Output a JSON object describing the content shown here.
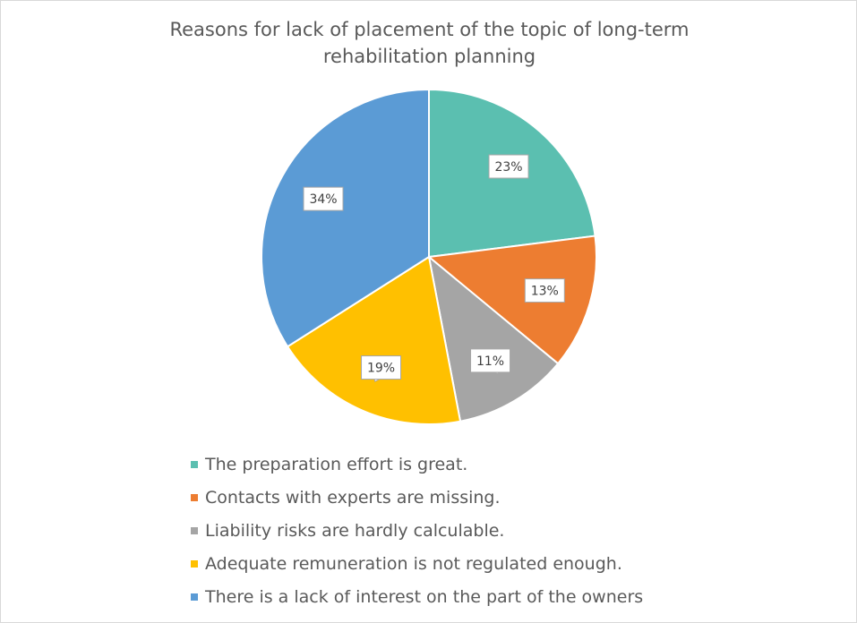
{
  "chart_data": {
    "type": "pie",
    "title": [
      "Reasons for lack of placement of the topic of long-term",
      "rehabilitation planning"
    ],
    "categories": [
      "The preparation effort is great.",
      "Contacts with experts are missing.",
      "Liability risks are hardly calculable.",
      "Adequate remuneration is not regulated enough.",
      "There is a lack of interest on the part of the owners"
    ],
    "values": [
      23,
      13,
      11,
      19,
      34
    ],
    "data_labels": [
      "23%",
      "13%",
      "11%",
      "19%",
      "34%"
    ],
    "colors": [
      "#5bbfb0",
      "#ed7d31",
      "#a5a5a5",
      "#ffc000",
      "#5b9bd5"
    ],
    "start_angle_deg": 0,
    "direction": "clockwise",
    "legend_position": "bottom"
  }
}
